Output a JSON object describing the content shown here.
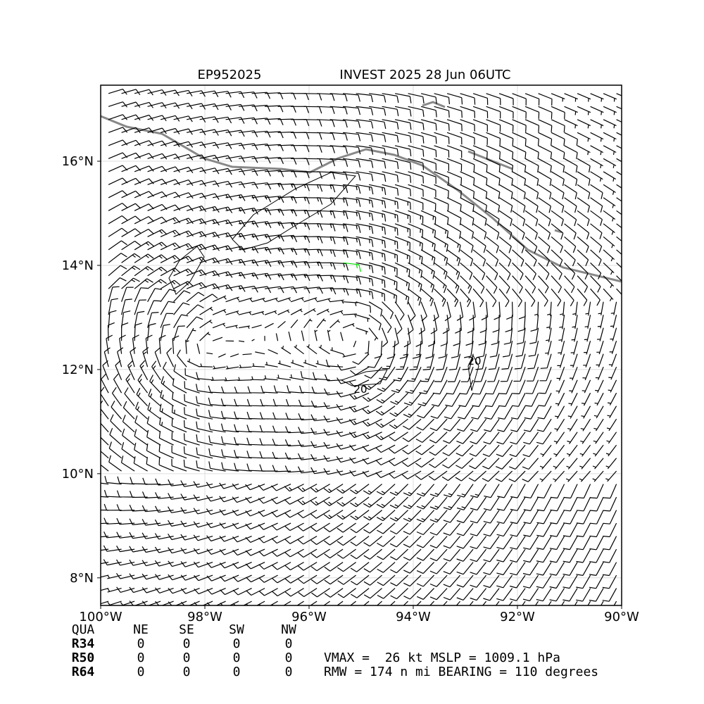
{
  "map": {
    "title_left": "EP952025",
    "title_right": "INVEST 2025 28 Jun 06UTC",
    "xlim": [
      -100,
      -90
    ],
    "ylim": [
      7.47,
      17.46
    ],
    "xticks": [
      {
        "value": -100,
        "label": "100°W"
      },
      {
        "value": -98,
        "label": "98°W"
      },
      {
        "value": -96,
        "label": "96°W"
      },
      {
        "value": -94,
        "label": "94°W"
      },
      {
        "value": -92,
        "label": "92°W"
      },
      {
        "value": -90,
        "label": "90°W"
      }
    ],
    "yticks": [
      {
        "value": 8,
        "label": "8°N"
      },
      {
        "value": 10,
        "label": "10°N"
      },
      {
        "value": 12,
        "label": "12°N"
      },
      {
        "value": 14,
        "label": "14°N"
      },
      {
        "value": 16,
        "label": "16°N"
      }
    ],
    "contour_labels": [
      "20",
      "20"
    ]
  },
  "table": {
    "header": [
      "QUA",
      "NE",
      "SE",
      "SW",
      "NW"
    ],
    "rows": [
      [
        "R34",
        0,
        0,
        0,
        0
      ],
      [
        "R50",
        0,
        0,
        0,
        0
      ],
      [
        "R64",
        0,
        0,
        0,
        0
      ]
    ]
  },
  "stats": [
    "VMAX =  26 kt MSLP = 1009.1 hPa",
    "RMW = 174 n mi BEARING = 110 degrees"
  ]
}
